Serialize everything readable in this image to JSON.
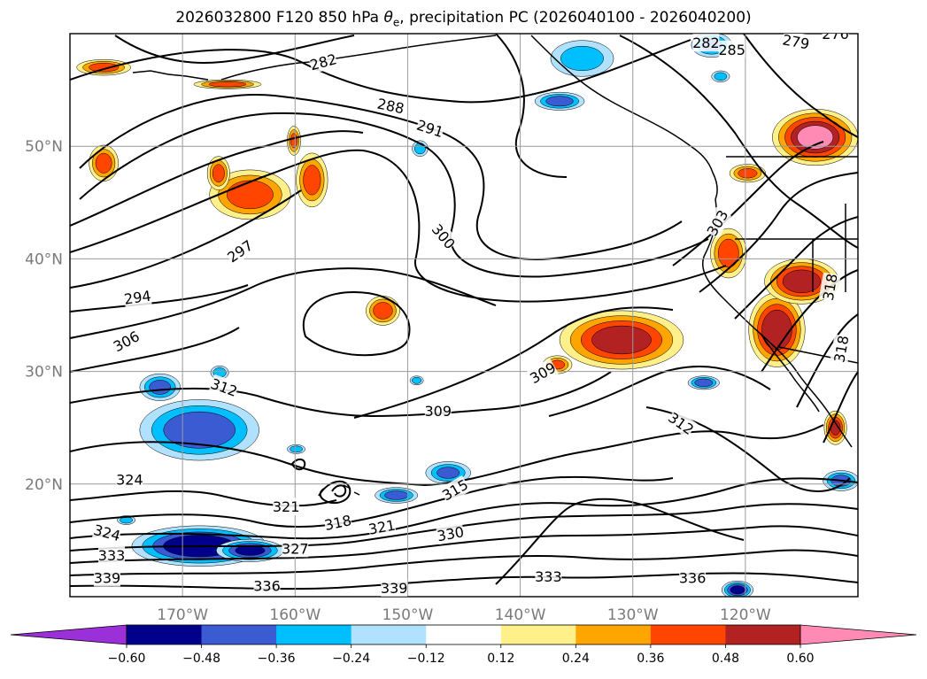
{
  "title": {
    "before": "2026032800 F120 850 hPa ",
    "symbol": "θ",
    "subscript": "e",
    "after": ", precipitation PC (2026040100 - 2026040200)"
  },
  "map": {
    "projection": "equidistant cylindrical",
    "lon_range": [
      -180,
      -110
    ],
    "lat_range": [
      10,
      60
    ],
    "lon_ticks": [
      {
        "value": -170,
        "label": "170°W"
      },
      {
        "value": -160,
        "label": "160°W"
      },
      {
        "value": -150,
        "label": "150°W"
      },
      {
        "value": -140,
        "label": "140°W"
      },
      {
        "value": -130,
        "label": "130°W"
      },
      {
        "value": -120,
        "label": "120°W"
      }
    ],
    "lat_ticks": [
      {
        "value": 20,
        "label": "20°N"
      },
      {
        "value": 30,
        "label": "30°N"
      },
      {
        "value": 40,
        "label": "40°N"
      },
      {
        "value": 50,
        "label": "50°N"
      }
    ],
    "grid": true,
    "tick_color": "#7a7a7a"
  },
  "contours": {
    "field": "850 hPa theta-e (K)",
    "labels": [
      {
        "text": "282",
        "lon": -157.5,
        "lat": 57.5,
        "angle": -15
      },
      {
        "text": "282",
        "lon": -123.5,
        "lat": 59.2,
        "angle": 0
      },
      {
        "text": "285",
        "lon": -121.2,
        "lat": 58.6,
        "angle": 0
      },
      {
        "text": "279",
        "lon": -115.5,
        "lat": 59.3,
        "angle": 10
      },
      {
        "text": "276",
        "lon": -112.0,
        "lat": 60.0,
        "angle": 0
      },
      {
        "text": "288",
        "lon": -151.5,
        "lat": 53.6,
        "angle": 12
      },
      {
        "text": "291",
        "lon": -148.0,
        "lat": 51.6,
        "angle": 18
      },
      {
        "text": "300",
        "lon": -146.8,
        "lat": 42.0,
        "angle": 50
      },
      {
        "text": "297",
        "lon": -164.9,
        "lat": 40.7,
        "angle": -35
      },
      {
        "text": "294",
        "lon": -174.0,
        "lat": 36.6,
        "angle": -8
      },
      {
        "text": "306",
        "lon": -175.0,
        "lat": 32.7,
        "angle": -28
      },
      {
        "text": "303",
        "lon": -122.5,
        "lat": 43.2,
        "angle": -60
      },
      {
        "text": "312",
        "lon": -166.3,
        "lat": 28.6,
        "angle": 20
      },
      {
        "text": "309",
        "lon": -138.0,
        "lat": 29.9,
        "angle": -30
      },
      {
        "text": "309",
        "lon": -147.3,
        "lat": 26.5,
        "angle": 0
      },
      {
        "text": "312",
        "lon": -125.7,
        "lat": 25.4,
        "angle": 35
      },
      {
        "text": "324",
        "lon": -174.7,
        "lat": 20.4,
        "angle": 0
      },
      {
        "text": "321",
        "lon": -160.8,
        "lat": 18.0,
        "angle": 0
      },
      {
        "text": "318",
        "lon": -156.2,
        "lat": 16.6,
        "angle": -12
      },
      {
        "text": "321",
        "lon": -152.3,
        "lat": 16.2,
        "angle": -10
      },
      {
        "text": "315",
        "lon": -145.8,
        "lat": 19.5,
        "angle": -30
      },
      {
        "text": "330",
        "lon": -146.2,
        "lat": 15.6,
        "angle": -10
      },
      {
        "text": "324",
        "lon": -176.7,
        "lat": 15.7,
        "angle": 15
      },
      {
        "text": "333",
        "lon": -176.3,
        "lat": 13.7,
        "angle": 0
      },
      {
        "text": "327",
        "lon": -160.0,
        "lat": 14.3,
        "angle": 0
      },
      {
        "text": "339",
        "lon": -176.7,
        "lat": 11.7,
        "angle": 0
      },
      {
        "text": "336",
        "lon": -162.5,
        "lat": 11.0,
        "angle": 0
      },
      {
        "text": "339",
        "lon": -151.2,
        "lat": 10.8,
        "angle": 0
      },
      {
        "text": "333",
        "lon": -137.5,
        "lat": 11.8,
        "angle": 0
      },
      {
        "text": "336",
        "lon": -124.7,
        "lat": 11.7,
        "angle": 0
      },
      {
        "text": "318",
        "lon": -112.5,
        "lat": 37.5,
        "angle": -80
      },
      {
        "text": "318",
        "lon": -111.5,
        "lat": 32.0,
        "angle": -80
      }
    ]
  },
  "precipitation": {
    "field": "precipitation PC",
    "regions": [
      {
        "lon": -164,
        "lat": 45.7,
        "rlon": 3.6,
        "rlat": 2.2,
        "value": 0.42
      },
      {
        "lon": -177,
        "lat": 48.5,
        "rlon": 1.3,
        "rlat": 1.6,
        "value": 0.4
      },
      {
        "lon": -158.5,
        "lat": 47.0,
        "rlon": 1.4,
        "rlat": 2.4,
        "value": 0.4
      },
      {
        "lon": -166.8,
        "lat": 47.6,
        "rlon": 1.0,
        "rlat": 1.5,
        "value": 0.38
      },
      {
        "lon": -160.1,
        "lat": 50.5,
        "rlon": 0.6,
        "rlat": 1.3,
        "value": 0.36
      },
      {
        "lon": -177.0,
        "lat": 57.0,
        "rlon": 2.4,
        "rlat": 0.7,
        "value": 0.4
      },
      {
        "lon": -166.0,
        "lat": 55.5,
        "rlon": 3.0,
        "rlat": 0.4,
        "value": 0.4
      },
      {
        "lon": -152.2,
        "lat": 35.4,
        "rlon": 1.5,
        "rlat": 1.3,
        "value": 0.42
      },
      {
        "lon": -131.0,
        "lat": 32.8,
        "rlon": 5.5,
        "rlat": 2.6,
        "value": 0.52
      },
      {
        "lon": -117.2,
        "lat": 33.7,
        "rlon": 2.5,
        "rlat": 3.3,
        "value": 0.58
      },
      {
        "lon": -115.0,
        "lat": 38.0,
        "rlon": 3.3,
        "rlat": 2.0,
        "value": 0.55
      },
      {
        "lon": -121.5,
        "lat": 40.5,
        "rlon": 1.6,
        "rlat": 2.2,
        "value": 0.42
      },
      {
        "lon": -113.8,
        "lat": 50.8,
        "rlon": 3.8,
        "rlat": 2.5,
        "value": 0.62
      },
      {
        "lon": -119.8,
        "lat": 47.6,
        "rlon": 1.6,
        "rlat": 0.8,
        "value": 0.38
      },
      {
        "lon": -136.7,
        "lat": 30.6,
        "rlon": 1.3,
        "rlat": 0.8,
        "value": 0.36
      },
      {
        "lon": -112.0,
        "lat": 25.0,
        "rlon": 1.0,
        "rlat": 1.5,
        "value": 0.48
      },
      {
        "lon": -168.5,
        "lat": 24.8,
        "rlon": 5.3,
        "rlat": 2.7,
        "value": -0.45
      },
      {
        "lon": -172.0,
        "lat": 28.6,
        "rlon": 1.8,
        "rlat": 1.2,
        "value": -0.38
      },
      {
        "lon": -166.7,
        "lat": 29.9,
        "rlon": 0.8,
        "rlat": 0.6,
        "value": -0.32
      },
      {
        "lon": -168.5,
        "lat": 14.5,
        "rlon": 6.0,
        "rlat": 1.8,
        "value": -0.58
      },
      {
        "lon": -164.0,
        "lat": 14.1,
        "rlon": 3.0,
        "rlat": 1.0,
        "value": -0.48
      },
      {
        "lon": -134.5,
        "lat": 57.8,
        "rlon": 2.8,
        "rlat": 1.6,
        "value": -0.28
      },
      {
        "lon": -136.5,
        "lat": 54.0,
        "rlon": 2.2,
        "rlat": 0.8,
        "value": -0.4
      },
      {
        "lon": -123.0,
        "lat": 59.0,
        "rlon": 1.8,
        "rlat": 1.1,
        "value": -0.36
      },
      {
        "lon": -122.2,
        "lat": 56.2,
        "rlon": 0.8,
        "rlat": 0.5,
        "value": -0.3
      },
      {
        "lon": -148.9,
        "lat": 49.8,
        "rlon": 0.7,
        "rlat": 0.7,
        "value": -0.3
      },
      {
        "lon": -151.0,
        "lat": 19.0,
        "rlon": 1.9,
        "rlat": 0.7,
        "value": -0.4
      },
      {
        "lon": -146.4,
        "lat": 21.0,
        "rlon": 2.0,
        "rlat": 1.0,
        "value": -0.36
      },
      {
        "lon": -123.7,
        "lat": 29.0,
        "rlon": 1.4,
        "rlat": 0.6,
        "value": -0.42
      },
      {
        "lon": -111.5,
        "lat": 20.3,
        "rlon": 1.6,
        "rlat": 0.9,
        "value": -0.4
      },
      {
        "lon": -120.7,
        "lat": 10.6,
        "rlon": 1.4,
        "rlat": 0.8,
        "value": -0.5
      },
      {
        "lon": -149.2,
        "lat": 29.2,
        "rlon": 0.6,
        "rlat": 0.4,
        "value": -0.3
      },
      {
        "lon": -159.9,
        "lat": 23.1,
        "rlon": 0.8,
        "rlat": 0.4,
        "value": -0.3
      },
      {
        "lon": -175.0,
        "lat": 16.8,
        "rlon": 0.8,
        "rlat": 0.4,
        "value": -0.3
      }
    ]
  },
  "colorbar": {
    "levels": [
      -0.6,
      -0.48,
      -0.36,
      -0.24,
      -0.12,
      0.12,
      0.24,
      0.36,
      0.48,
      0.6
    ],
    "tick_labels": [
      "−0.60",
      "−0.48",
      "−0.36",
      "−0.24",
      "−0.12",
      "0.12",
      "0.24",
      "0.36",
      "0.48",
      "0.60"
    ],
    "under_color": "#9b30d9",
    "over_color": "#ff8bb5",
    "colors": [
      "#00008b",
      "#3a5bd1",
      "#00bfff",
      "#b0e2ff",
      "#ffffff",
      "#fff08a",
      "#ffa500",
      "#ff4500",
      "#b22222"
    ],
    "extend": "both"
  }
}
